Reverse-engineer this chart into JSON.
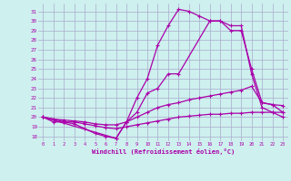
{
  "xlabel": "Windchill (Refroidissement éolien,°C)",
  "bg_color": "#cef0ee",
  "grid_color": "#aaaacc",
  "line_color": "#aa00aa",
  "xlim": [
    -0.5,
    23.5
  ],
  "ylim": [
    17.5,
    31.8
  ],
  "xticks": [
    0,
    1,
    2,
    3,
    4,
    5,
    6,
    7,
    8,
    9,
    10,
    11,
    12,
    13,
    14,
    15,
    16,
    17,
    18,
    19,
    20,
    21,
    22,
    23
  ],
  "yticks": [
    18,
    19,
    20,
    21,
    22,
    23,
    24,
    25,
    26,
    27,
    28,
    29,
    30,
    31
  ],
  "line_bottom": {
    "x": [
      0,
      1,
      2,
      3,
      4,
      5,
      6,
      7,
      8,
      9,
      10,
      11,
      12,
      13,
      14,
      15,
      16,
      17,
      18,
      19,
      20,
      21,
      22,
      23
    ],
    "y": [
      20.0,
      19.5,
      19.5,
      19.5,
      19.3,
      19.1,
      18.9,
      18.8,
      19.0,
      19.2,
      19.4,
      19.6,
      19.8,
      20.0,
      20.1,
      20.2,
      20.3,
      20.3,
      20.4,
      20.4,
      20.5,
      20.5,
      20.5,
      20.5
    ]
  },
  "line_mid": {
    "x": [
      0,
      1,
      2,
      3,
      4,
      5,
      6,
      7,
      8,
      9,
      10,
      11,
      12,
      13,
      14,
      15,
      16,
      17,
      18,
      19,
      20,
      21,
      22,
      23
    ],
    "y": [
      20.0,
      19.8,
      19.7,
      19.6,
      19.5,
      19.3,
      19.2,
      19.2,
      19.5,
      20.0,
      20.5,
      21.0,
      21.3,
      21.5,
      21.8,
      22.0,
      22.2,
      22.4,
      22.6,
      22.8,
      23.2,
      21.5,
      21.3,
      21.2
    ]
  },
  "line_arch": {
    "x": [
      0,
      1,
      2,
      3,
      4,
      5,
      6,
      7,
      8,
      9,
      10,
      11,
      12,
      13,
      14,
      15,
      16,
      17,
      18,
      19,
      20,
      21,
      22,
      23
    ],
    "y": [
      20.0,
      19.8,
      19.5,
      19.3,
      18.8,
      18.3,
      18.0,
      17.8,
      19.5,
      22.0,
      24.0,
      27.5,
      29.5,
      31.2,
      31.0,
      30.5,
      30.0,
      30.0,
      29.0,
      29.0,
      25.0,
      21.5,
      21.3,
      20.5
    ]
  },
  "line_sparse": {
    "x": [
      0,
      7,
      8,
      9,
      10,
      11,
      12,
      13,
      16,
      17,
      18,
      19,
      20,
      21,
      22,
      23
    ],
    "y": [
      20.0,
      17.8,
      19.5,
      20.5,
      22.5,
      23.0,
      24.5,
      24.5,
      30.0,
      30.0,
      29.5,
      29.5,
      24.5,
      21.0,
      20.5,
      20.0
    ]
  }
}
